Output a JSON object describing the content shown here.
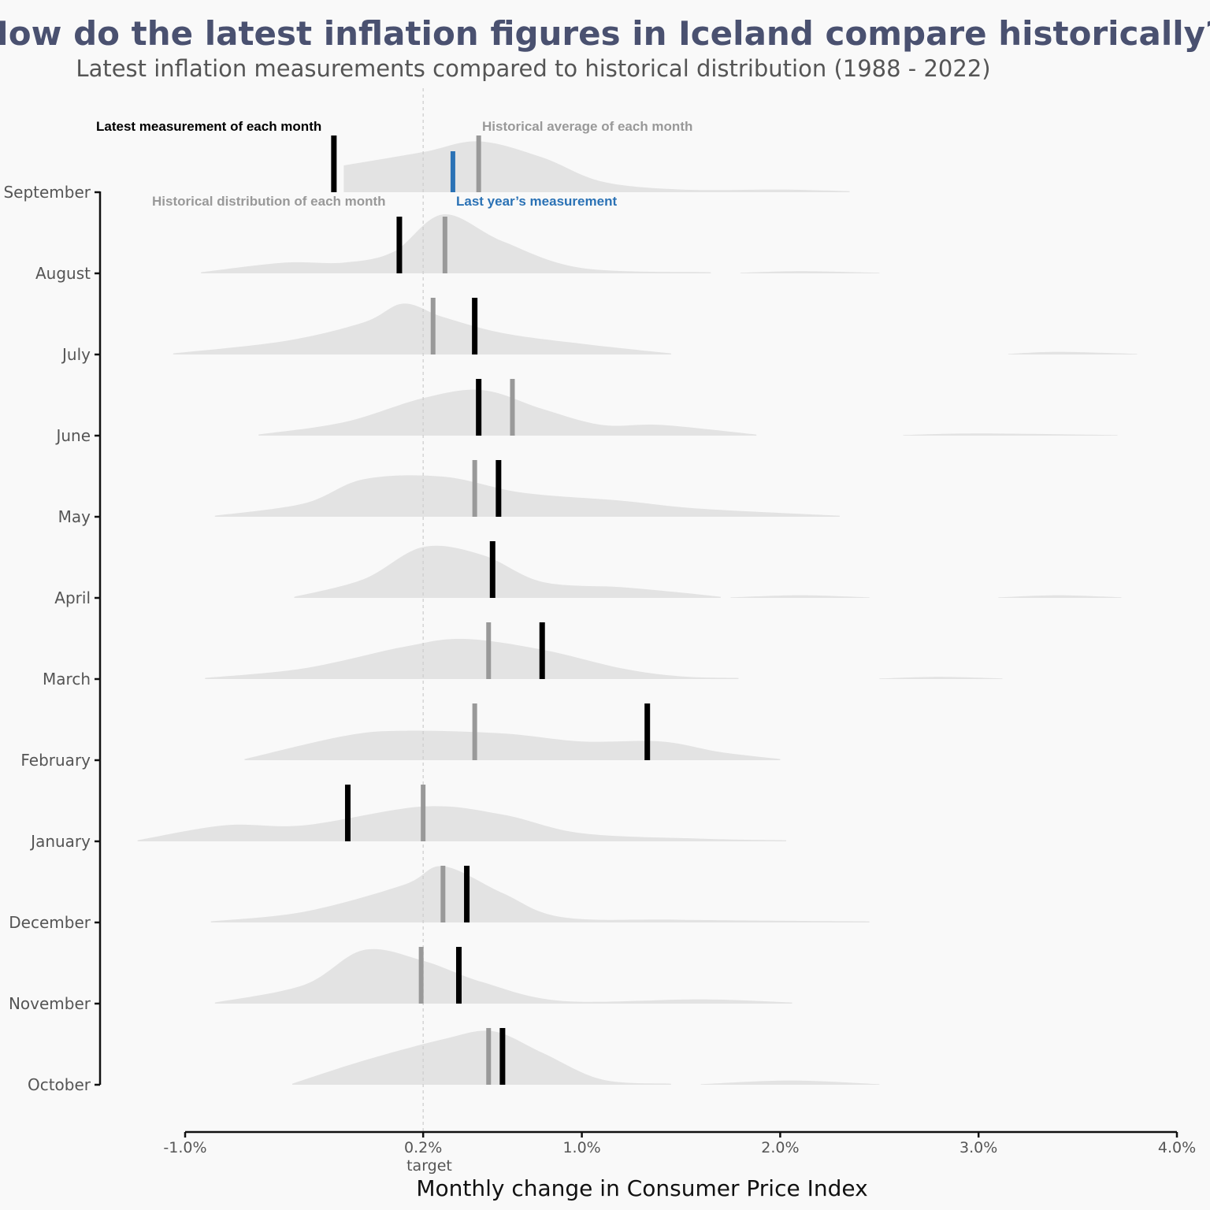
{
  "chart_data": {
    "type": "ridgeline",
    "title": "How do the latest inflation figures in Iceland compare historically?",
    "subtitle": "Latest inflation measurements compared to historical distribution (1988 - 2022)",
    "xlabel": "Monthly change in Consumer Price Index",
    "x_ticks": [
      "-1.0%",
      "0.2%",
      "1.0%",
      "2.0%",
      "3.0%",
      "4.0%"
    ],
    "x_tick_values": [
      -1.0,
      0.2,
      1.0,
      2.0,
      3.0,
      4.0
    ],
    "xlim": [
      -1.0,
      4.0
    ],
    "target_value": 0.2,
    "target_label": "target",
    "grid": false,
    "annotations": {
      "latest": "Latest measurement of each month",
      "average": "Historical average of each month",
      "distribution": "Historical distribution of each month",
      "last_year": "Last year’s measurement"
    },
    "colors": {
      "latest": "#000000",
      "average": "#999999",
      "last_year": "#2b72b5",
      "density": "#e3e3e3",
      "title": "#4a5170"
    },
    "months": [
      {
        "name": "September",
        "latest": -0.25,
        "average": 0.48,
        "last_year": 0.35,
        "density": [
          [
            -0.2,
            0.5
          ],
          [
            0.2,
            0.75
          ],
          [
            0.48,
            0.95
          ],
          [
            0.8,
            0.65
          ],
          [
            1.1,
            0.2
          ],
          [
            1.5,
            0.05
          ],
          [
            2.0,
            0.05
          ],
          [
            2.35,
            0.02
          ]
        ]
      },
      {
        "name": "August",
        "latest": 0.08,
        "average": 0.31,
        "density": [
          [
            -0.92,
            0.02
          ],
          [
            -0.5,
            0.2
          ],
          [
            -0.2,
            0.2
          ],
          [
            0.05,
            0.4
          ],
          [
            0.3,
            1.1
          ],
          [
            0.6,
            0.6
          ],
          [
            1.0,
            0.1
          ],
          [
            1.65,
            0.02
          ]
        ],
        "extra_density": [
          [
            1.8,
            0.01
          ],
          [
            2.1,
            0.04
          ],
          [
            2.5,
            0.01
          ]
        ]
      },
      {
        "name": "July",
        "latest": 0.46,
        "average": 0.25,
        "density": [
          [
            -1.06,
            0.02
          ],
          [
            -0.5,
            0.25
          ],
          [
            -0.1,
            0.6
          ],
          [
            0.1,
            0.95
          ],
          [
            0.3,
            0.7
          ],
          [
            0.6,
            0.4
          ],
          [
            1.0,
            0.2
          ],
          [
            1.45,
            0.02
          ]
        ],
        "extra_density": [
          [
            3.15,
            0.01
          ],
          [
            3.4,
            0.05
          ],
          [
            3.8,
            0.01
          ]
        ]
      },
      {
        "name": "June",
        "latest": 0.48,
        "average": 0.65,
        "density": [
          [
            -0.63,
            0.02
          ],
          [
            -0.2,
            0.25
          ],
          [
            0.2,
            0.7
          ],
          [
            0.5,
            0.85
          ],
          [
            0.8,
            0.5
          ],
          [
            1.1,
            0.2
          ],
          [
            1.4,
            0.2
          ],
          [
            1.88,
            0.02
          ]
        ],
        "extra_density": [
          [
            2.62,
            0.01
          ],
          [
            3.0,
            0.04
          ],
          [
            3.7,
            0.01
          ]
        ]
      },
      {
        "name": "May",
        "latest": 0.58,
        "average": 0.46,
        "density": [
          [
            -0.85,
            0.02
          ],
          [
            -0.4,
            0.25
          ],
          [
            -0.1,
            0.7
          ],
          [
            0.3,
            0.75
          ],
          [
            0.7,
            0.45
          ],
          [
            1.2,
            0.3
          ],
          [
            1.6,
            0.15
          ],
          [
            2.3,
            0.02
          ]
        ]
      },
      {
        "name": "April",
        "latest": 0.55,
        "average": 0.55,
        "density": [
          [
            -0.45,
            0.02
          ],
          [
            -0.1,
            0.35
          ],
          [
            0.2,
            0.95
          ],
          [
            0.5,
            0.8
          ],
          [
            0.8,
            0.3
          ],
          [
            1.2,
            0.2
          ],
          [
            1.5,
            0.1
          ],
          [
            1.7,
            0.02
          ]
        ],
        "extra_density": [
          [
            1.75,
            0.01
          ],
          [
            2.1,
            0.05
          ],
          [
            2.45,
            0.01
          ],
          [
            3.1,
            0.01
          ],
          [
            3.4,
            0.05
          ],
          [
            3.72,
            0.01
          ]
        ]
      },
      {
        "name": "March",
        "latest": 0.8,
        "average": 0.53,
        "density": [
          [
            -0.9,
            0.02
          ],
          [
            -0.4,
            0.2
          ],
          [
            0.1,
            0.6
          ],
          [
            0.4,
            0.75
          ],
          [
            0.8,
            0.55
          ],
          [
            1.2,
            0.2
          ],
          [
            1.5,
            0.05
          ],
          [
            1.79,
            0.02
          ]
        ],
        "extra_density": [
          [
            2.5,
            0.01
          ],
          [
            2.8,
            0.04
          ],
          [
            3.12,
            0.01
          ]
        ]
      },
      {
        "name": "February",
        "latest": 1.33,
        "average": 0.46,
        "density": [
          [
            -0.7,
            0.02
          ],
          [
            -0.2,
            0.45
          ],
          [
            0.1,
            0.55
          ],
          [
            0.6,
            0.5
          ],
          [
            1.0,
            0.35
          ],
          [
            1.4,
            0.35
          ],
          [
            1.7,
            0.15
          ],
          [
            2.0,
            0.02
          ]
        ]
      },
      {
        "name": "January",
        "latest": -0.18,
        "average": 0.2,
        "density": [
          [
            -1.24,
            0.02
          ],
          [
            -0.8,
            0.3
          ],
          [
            -0.4,
            0.3
          ],
          [
            0.2,
            0.65
          ],
          [
            0.6,
            0.5
          ],
          [
            1.0,
            0.15
          ],
          [
            1.6,
            0.05
          ],
          [
            2.03,
            0.02
          ]
        ]
      },
      {
        "name": "December",
        "latest": 0.42,
        "average": 0.3,
        "density": [
          [
            -0.87,
            0.02
          ],
          [
            -0.4,
            0.2
          ],
          [
            0.1,
            0.7
          ],
          [
            0.3,
            1.05
          ],
          [
            0.6,
            0.55
          ],
          [
            0.9,
            0.1
          ],
          [
            1.5,
            0.05
          ],
          [
            2.45,
            0.02
          ]
        ]
      },
      {
        "name": "November",
        "latest": 0.38,
        "average": 0.19,
        "density": [
          [
            -0.85,
            0.02
          ],
          [
            -0.4,
            0.35
          ],
          [
            -0.1,
            1.0
          ],
          [
            0.2,
            0.8
          ],
          [
            0.5,
            0.4
          ],
          [
            0.9,
            0.05
          ],
          [
            1.6,
            0.08
          ],
          [
            2.06,
            0.02
          ]
        ]
      },
      {
        "name": "October",
        "latest": 0.6,
        "average": 0.53,
        "density": [
          [
            -0.46,
            0.02
          ],
          [
            -0.1,
            0.45
          ],
          [
            0.3,
            0.85
          ],
          [
            0.55,
            1.0
          ],
          [
            0.8,
            0.6
          ],
          [
            1.1,
            0.1
          ],
          [
            1.45,
            0.02
          ]
        ],
        "extra_density": [
          [
            1.6,
            0.01
          ],
          [
            2.05,
            0.08
          ],
          [
            2.5,
            0.01
          ]
        ]
      }
    ]
  }
}
